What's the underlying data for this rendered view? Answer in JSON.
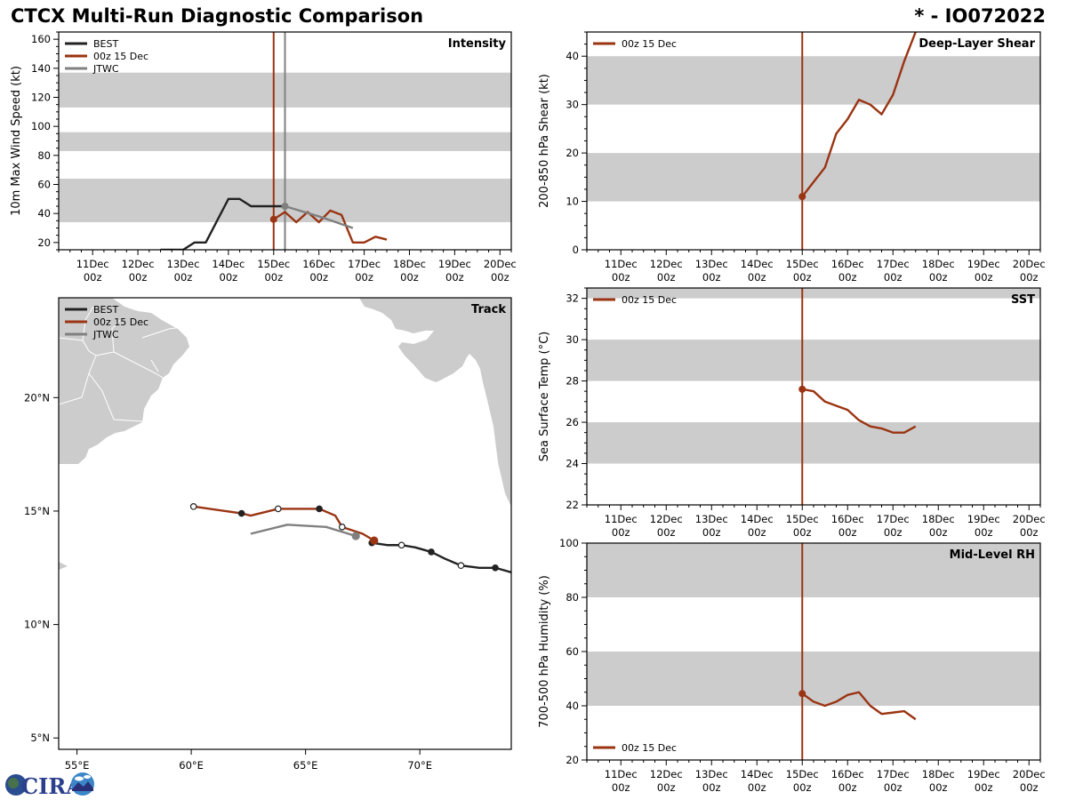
{
  "header": {
    "title": "CTCX Multi-Run Diagnostic Comparison",
    "storm_id": "* - IO072022"
  },
  "colors": {
    "best": "#222222",
    "run": "#9a3412",
    "jtwc": "#808080",
    "band": "#cccccc",
    "land": "#cccccc"
  },
  "logo": {
    "text": "CIRA"
  },
  "chart_data": [
    {
      "id": "intensity",
      "type": "line",
      "title": "Intensity",
      "ylabel": "10m Max Wind Speed (kt)",
      "xlabel": "",
      "x_unit": "day of December",
      "xlim": [
        10.25,
        20.25
      ],
      "ylim": [
        15,
        165
      ],
      "yticks": [
        20,
        40,
        60,
        80,
        100,
        120,
        140,
        160
      ],
      "xticks": [
        {
          "x": 11,
          "label1": "11Dec",
          "label2": "00z"
        },
        {
          "x": 12,
          "label1": "12Dec",
          "label2": "00z"
        },
        {
          "x": 13,
          "label1": "13Dec",
          "label2": "00z"
        },
        {
          "x": 14,
          "label1": "14Dec",
          "label2": "00z"
        },
        {
          "x": 15,
          "label1": "15Dec",
          "label2": "00z"
        },
        {
          "x": 16,
          "label1": "16Dec",
          "label2": "00z"
        },
        {
          "x": 17,
          "label1": "17Dec",
          "label2": "00z"
        },
        {
          "x": 18,
          "label1": "18Dec",
          "label2": "00z"
        },
        {
          "x": 19,
          "label1": "19Dec",
          "label2": "00z"
        },
        {
          "x": 20,
          "label1": "20Dec",
          "label2": "00z"
        }
      ],
      "bands": [
        [
          34,
          64
        ],
        [
          83,
          96
        ],
        [
          113,
          137
        ]
      ],
      "legend": {
        "placement": "top-left",
        "entries": [
          "BEST",
          "00z 15 Dec",
          "JTWC"
        ]
      },
      "vlines": [
        {
          "x": 15.0,
          "series": "run"
        },
        {
          "x": 15.25,
          "series": "jtwc"
        }
      ],
      "series": [
        {
          "name": "BEST",
          "key": "best",
          "x": [
            12.5,
            12.75,
            13.0,
            13.25,
            13.5,
            13.75,
            14.0,
            14.25,
            14.5,
            14.75,
            15.0,
            15.25
          ],
          "y": [
            15,
            15,
            15,
            20,
            20,
            35,
            50,
            50,
            45,
            45,
            45,
            45
          ]
        },
        {
          "name": "00z 15 Dec",
          "key": "run",
          "marker_at_start": true,
          "x": [
            15.0,
            15.25,
            15.5,
            15.75,
            16.0,
            16.25,
            16.5,
            16.75,
            17.0,
            17.25,
            17.5
          ],
          "y": [
            36,
            41,
            34,
            41,
            34,
            42,
            39,
            20,
            20,
            24,
            22
          ]
        },
        {
          "name": "JTWC",
          "key": "jtwc",
          "marker_at_start": true,
          "x": [
            15.25,
            16.0,
            16.75
          ],
          "y": [
            45,
            38,
            30
          ]
        }
      ]
    },
    {
      "id": "shear",
      "type": "line",
      "title": "Deep-Layer Shear",
      "ylabel": "200-850 hPa Shear (kt)",
      "xlabel": "",
      "xlim": [
        10.25,
        20.25
      ],
      "ylim": [
        0,
        45
      ],
      "yticks": [
        0,
        10,
        20,
        30,
        40
      ],
      "bands": [
        [
          10,
          20
        ],
        [
          30,
          40
        ]
      ],
      "legend": {
        "placement": "top-left",
        "entries": [
          "00z 15 Dec"
        ]
      },
      "vlines": [
        {
          "x": 15.0,
          "series": "run"
        }
      ],
      "series": [
        {
          "name": "00z 15 Dec",
          "key": "run",
          "marker_at_start": true,
          "x": [
            15.0,
            15.25,
            15.5,
            15.75,
            16.0,
            16.25,
            16.5,
            16.75,
            17.0,
            17.25,
            17.5
          ],
          "y": [
            11,
            14,
            17,
            24,
            27,
            31,
            30,
            28,
            32,
            39,
            45
          ]
        }
      ]
    },
    {
      "id": "sst",
      "type": "line",
      "title": "SST",
      "ylabel": "Sea Surface Temp (°C)",
      "xlabel": "",
      "xlim": [
        10.25,
        20.25
      ],
      "ylim": [
        22,
        32.5
      ],
      "yticks": [
        22,
        24,
        26,
        28,
        30,
        32
      ],
      "bands": [
        [
          24,
          26
        ],
        [
          28,
          30
        ],
        [
          32,
          34
        ]
      ],
      "legend": {
        "placement": "top-left",
        "entries": [
          "00z 15 Dec"
        ]
      },
      "vlines": [
        {
          "x": 15.0,
          "series": "run"
        }
      ],
      "series": [
        {
          "name": "00z 15 Dec",
          "key": "run",
          "marker_at_start": true,
          "x": [
            15.0,
            15.25,
            15.5,
            15.75,
            16.0,
            16.25,
            16.5,
            16.75,
            17.0,
            17.25,
            17.5
          ],
          "y": [
            27.6,
            27.5,
            27.0,
            26.8,
            26.6,
            26.1,
            25.8,
            25.7,
            25.5,
            25.5,
            25.8
          ]
        }
      ]
    },
    {
      "id": "rh",
      "type": "line",
      "title": "Mid-Level RH",
      "ylabel": "700-500 hPa Humidity (%)",
      "xlabel": "",
      "xlim": [
        10.25,
        20.25
      ],
      "ylim": [
        20,
        100
      ],
      "yticks": [
        20,
        40,
        60,
        80,
        100
      ],
      "bands": [
        [
          40,
          60
        ],
        [
          80,
          100
        ]
      ],
      "legend": {
        "placement": "bottom-left",
        "entries": [
          "00z 15 Dec"
        ]
      },
      "vlines": [
        {
          "x": 15.0,
          "series": "run"
        }
      ],
      "series": [
        {
          "name": "00z 15 Dec",
          "key": "run",
          "marker_at_start": true,
          "x": [
            15.0,
            15.25,
            15.5,
            15.75,
            16.0,
            16.25,
            16.5,
            16.75,
            17.0,
            17.25,
            17.5
          ],
          "y": [
            44.5,
            41.5,
            40,
            41.5,
            44,
            45,
            40,
            37,
            37.5,
            38,
            35
          ]
        }
      ]
    },
    {
      "id": "track",
      "type": "scatter",
      "title": "Track",
      "xlabel": "",
      "ylabel": "",
      "xlim": [
        54.2,
        74.0
      ],
      "ylim": [
        4.5,
        24.4
      ],
      "xticks": [
        {
          "x": 55,
          "label": "55°E"
        },
        {
          "x": 60,
          "label": "60°E"
        },
        {
          "x": 65,
          "label": "65°E"
        },
        {
          "x": 70,
          "label": "70°E"
        }
      ],
      "yticks": [
        {
          "y": 5,
          "label": "5°N"
        },
        {
          "y": 10,
          "label": "10°N"
        },
        {
          "y": 15,
          "label": "15°N"
        },
        {
          "y": 20,
          "label": "20°N"
        }
      ],
      "legend": {
        "placement": "top-left",
        "entries": [
          "BEST",
          "00z 15 Dec",
          "JTWC"
        ]
      },
      "series": [
        {
          "name": "BEST",
          "key": "best",
          "lon": [
            74.0,
            73.3,
            72.6,
            71.8,
            71.1,
            70.5,
            69.8,
            69.2,
            68.6,
            67.9
          ],
          "lat": [
            12.3,
            12.5,
            12.5,
            12.6,
            12.9,
            13.2,
            13.4,
            13.5,
            13.5,
            13.6
          ],
          "markers": [
            {
              "lon": 73.3,
              "lat": 12.5,
              "fill": "filled"
            },
            {
              "lon": 71.8,
              "lat": 12.6,
              "fill": "open"
            },
            {
              "lon": 70.5,
              "lat": 13.2,
              "fill": "filled"
            },
            {
              "lon": 69.2,
              "lat": 13.5,
              "fill": "open"
            },
            {
              "lon": 67.9,
              "lat": 13.6,
              "fill": "filled"
            }
          ]
        },
        {
          "name": "00z 15 Dec",
          "key": "run",
          "lon": [
            68.0,
            67.5,
            66.6,
            66.3,
            65.6,
            63.8,
            62.6,
            62.2,
            60.1
          ],
          "lat": [
            13.7,
            14.0,
            14.3,
            14.8,
            15.1,
            15.1,
            14.8,
            14.9,
            15.2
          ],
          "markers": [
            {
              "lon": 68.0,
              "lat": 13.7,
              "fill": "run"
            },
            {
              "lon": 66.6,
              "lat": 14.3,
              "fill": "open"
            },
            {
              "lon": 65.6,
              "lat": 15.1,
              "fill": "filled"
            },
            {
              "lon": 63.8,
              "lat": 15.1,
              "fill": "open"
            },
            {
              "lon": 62.2,
              "lat": 14.9,
              "fill": "filled"
            },
            {
              "lon": 60.1,
              "lat": 15.2,
              "fill": "open"
            }
          ]
        },
        {
          "name": "JTWC",
          "key": "jtwc",
          "lon": [
            67.2,
            65.9,
            64.2,
            62.6
          ],
          "lat": [
            13.9,
            14.3,
            14.4,
            14.0
          ],
          "markers": [
            {
              "lon": 67.2,
              "lat": 13.9,
              "fill": "jtwc"
            }
          ]
        }
      ]
    }
  ]
}
